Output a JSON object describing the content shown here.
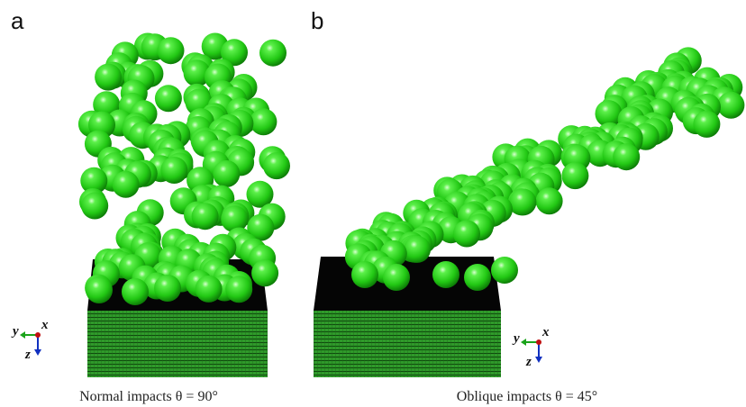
{
  "panels": [
    {
      "label": "a",
      "caption": "Normal impacts θ = 90°",
      "axes": {
        "y": "y",
        "x": "x",
        "z": "z"
      }
    },
    {
      "label": "b",
      "caption": "Oblique impacts θ = 45°",
      "axes": {
        "y": "y",
        "x": "x",
        "z": "z"
      }
    }
  ]
}
